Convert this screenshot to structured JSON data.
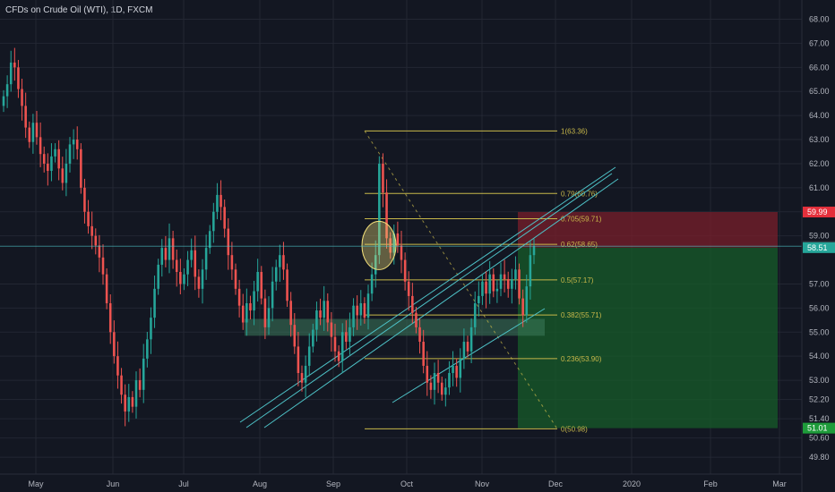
{
  "title": "CFDs on Crude Oil (WTI), 1D, FXCM",
  "colors": {
    "background": "#131722",
    "grid": "#232733",
    "bull": "#26a69a",
    "bear": "#ef5350",
    "fib": "#c8b84a",
    "channel": "#4ec3c8",
    "zone": "#3d7a5b",
    "stop_zone": "#7a1f2b",
    "target_zone": "#175c2a",
    "highlight_circle": "#f5e27a"
  },
  "chart_data": {
    "type": "candlestick",
    "x_tick_labels": [
      "May",
      "Jun",
      "Jul",
      "Aug",
      "Sep",
      "Oct",
      "Nov",
      "Dec",
      "2020",
      "Feb",
      "Mar"
    ],
    "y_tick_labels": [
      "68.00",
      "67.00",
      "66.00",
      "65.00",
      "64.00",
      "63.00",
      "62.00",
      "61.00",
      "60.00",
      "59.00",
      "57.00",
      "56.00",
      "55.00",
      "54.00",
      "53.00",
      "52.20",
      "51.40",
      "50.60",
      "49.80"
    ],
    "ylim": [
      49.1,
      68.8
    ],
    "grid": true,
    "price_tags": [
      {
        "value": "59.99",
        "kind": "stop"
      },
      {
        "value": "58.57",
        "kind": "level"
      },
      {
        "value": "58.51",
        "kind": "current"
      },
      {
        "value": "51.01",
        "kind": "target"
      }
    ],
    "fibonacci": [
      {
        "ratio": "1",
        "price": 63.36,
        "label": "1(63.36)"
      },
      {
        "ratio": "0.79",
        "price": 60.76,
        "label": "0.79(60.76)"
      },
      {
        "ratio": "0.705",
        "price": 59.71,
        "label": "0.705(59.71)"
      },
      {
        "ratio": "0.62",
        "price": 58.65,
        "label": "0.62(58.65)"
      },
      {
        "ratio": "0.5",
        "price": 57.17,
        "label": "0.5(57.17)"
      },
      {
        "ratio": "0.382",
        "price": 55.71,
        "label": "0.382(55.71)"
      },
      {
        "ratio": "0.236",
        "price": 53.9,
        "label": "0.236(53.90)"
      },
      {
        "ratio": "0",
        "price": 50.98,
        "label": "0(50.98)"
      }
    ],
    "support_zone": {
      "low": 54.85,
      "high": 55.55
    },
    "stop_zone": {
      "low": 58.51,
      "high": 59.99
    },
    "target_zone": {
      "low": 51.01,
      "high": 58.51
    },
    "candles_close": [
      64.8,
      65.3,
      66.2,
      66.0,
      65.1,
      64.4,
      63.5,
      62.9,
      63.7,
      63.1,
      62.4,
      62.0,
      61.7,
      62.3,
      62.6,
      61.8,
      61.2,
      62.0,
      62.8,
      63.0,
      62.6,
      61.0,
      60.0,
      59.4,
      59.0,
      58.6,
      58.1,
      57.4,
      56.2,
      55.0,
      54.0,
      53.2,
      52.4,
      51.7,
      52.3,
      51.9,
      53.0,
      52.6,
      53.9,
      54.7,
      55.6,
      56.8,
      57.8,
      58.5,
      58.0,
      58.9,
      58.0,
      57.5,
      57.0,
      57.4,
      58.0,
      58.4,
      57.3,
      56.8,
      57.6,
      58.5,
      59.2,
      60.0,
      60.7,
      60.2,
      59.3,
      58.2,
      57.6,
      56.8,
      56.1,
      55.4,
      56.2,
      55.9,
      56.7,
      57.5,
      56.4,
      55.2,
      56.0,
      57.1,
      57.7,
      58.2,
      57.6,
      56.3,
      55.3,
      54.4,
      53.3,
      52.9,
      53.6,
      54.4,
      55.1,
      55.9,
      55.6,
      56.3,
      55.4,
      54.8,
      54.2,
      53.8,
      55.0,
      54.6,
      55.2,
      56.1,
      55.7,
      56.2,
      55.6,
      56.6,
      57.4,
      58.2,
      62.0,
      60.8,
      58.9,
      58.3,
      59.1,
      58.6,
      58.0,
      57.1,
      56.5,
      55.8,
      55.2,
      54.6,
      53.6,
      52.9,
      52.6,
      53.3,
      52.9,
      52.4,
      52.7,
      53.3,
      53.6,
      53.1,
      53.9,
      54.6,
      54.2,
      55.2,
      56.2,
      56.5,
      57.1,
      56.6,
      57.4,
      56.7,
      56.8,
      57.4,
      57.2,
      56.8,
      57.2,
      57.6,
      56.4,
      55.7,
      56.9,
      58.2,
      58.57
    ]
  }
}
